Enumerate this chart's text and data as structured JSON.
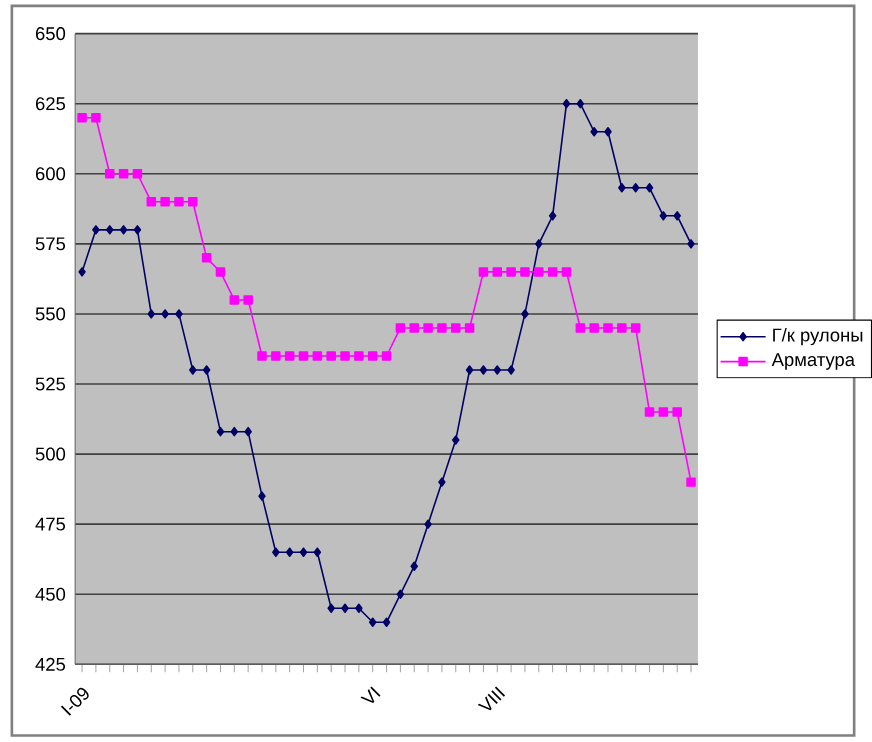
{
  "chart_data": {
    "type": "line",
    "categories": [
      "I-09",
      null,
      null,
      null,
      null,
      null,
      null,
      null,
      null,
      null,
      null,
      null,
      null,
      null,
      null,
      null,
      null,
      null,
      null,
      null,
      null,
      "VI",
      null,
      null,
      null,
      null,
      null,
      null,
      null,
      null,
      "VIII",
      null,
      null,
      null,
      null,
      null,
      null,
      null,
      null,
      null,
      null,
      null,
      null,
      null,
      null
    ],
    "series": [
      {
        "name": "Г/к рулоны",
        "color": "#000066",
        "marker": "diamond",
        "values": [
          565,
          580,
          580,
          580,
          580,
          550,
          550,
          550,
          530,
          530,
          508,
          508,
          508,
          485,
          465,
          465,
          465,
          465,
          445,
          445,
          445,
          440,
          440,
          450,
          460,
          475,
          490,
          505,
          530,
          530,
          530,
          530,
          550,
          575,
          585,
          625,
          625,
          615,
          615,
          595,
          595,
          595,
          585,
          585,
          575
        ]
      },
      {
        "name": "Арматура",
        "color": "#ff00ff",
        "marker": "square",
        "values": [
          620,
          620,
          600,
          600,
          600,
          590,
          590,
          590,
          590,
          570,
          565,
          555,
          555,
          535,
          535,
          535,
          535,
          535,
          535,
          535,
          535,
          535,
          535,
          545,
          545,
          545,
          545,
          545,
          545,
          565,
          565,
          565,
          565,
          565,
          565,
          565,
          545,
          545,
          545,
          545,
          545,
          515,
          515,
          515,
          490
        ]
      }
    ],
    "ylim": [
      425,
      650
    ],
    "yticks": [
      425,
      450,
      475,
      500,
      525,
      550,
      575,
      600,
      625,
      650
    ],
    "grid": "y",
    "legend": "right"
  }
}
